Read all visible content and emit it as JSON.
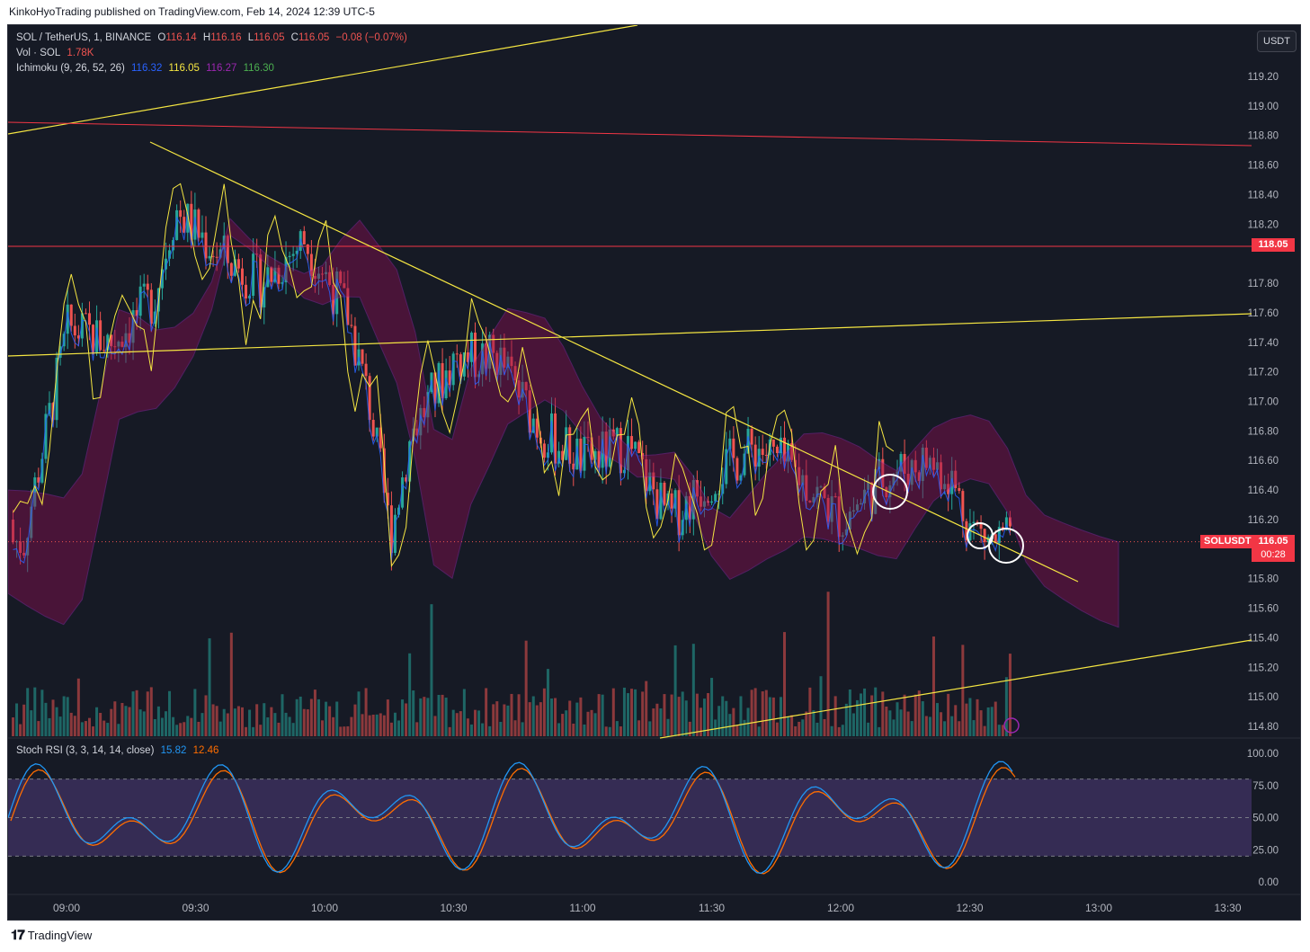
{
  "publish_info": "KinkoHyoTrading published on TradingView.com, Feb 14, 2024 12:39 UTC-5",
  "symbol_line": {
    "name": "SOL / TetherUS, 1, BINANCE",
    "o_label": "O",
    "o": "116.14",
    "h_label": "H",
    "h": "116.16",
    "l_label": "L",
    "l": "116.05",
    "c_label": "C",
    "c": "116.05",
    "change": "−0.08 (−0.07%)"
  },
  "volume_line": {
    "label": "Vol · SOL",
    "value": "1.78K"
  },
  "ichimoku_line": {
    "label": "Ichimoku (9, 26, 52, 26)",
    "v1": "116.32",
    "v2": "116.05",
    "v3": "116.27",
    "v4": "116.30"
  },
  "currency_button": "USDT",
  "price_axis": [
    "119.20",
    "119.00",
    "118.80",
    "118.60",
    "118.40",
    "118.20",
    "117.80",
    "117.60",
    "117.40",
    "117.20",
    "117.00",
    "116.80",
    "116.60",
    "116.40",
    "116.20",
    "115.80",
    "115.60",
    "115.40",
    "115.20",
    "115.00",
    "114.80"
  ],
  "tags": {
    "level_price": "118.05",
    "symbol_tag": "SOLUSDT",
    "last_price": "116.05",
    "countdown": "00:28"
  },
  "stoch_line": {
    "label": "Stoch RSI (3, 3, 14, 14, close)",
    "k": "15.82",
    "d": "12.46"
  },
  "stoch_axis": [
    "100.00",
    "75.00",
    "50.00",
    "25.00",
    "0.00"
  ],
  "time_axis": [
    "09:00",
    "09:30",
    "10:00",
    "10:30",
    "11:00",
    "11:30",
    "12:00",
    "12:30",
    "13:00",
    "13:30"
  ],
  "footer": {
    "brand": "TradingView"
  },
  "colors": {
    "background": "#161a25",
    "up": "#26a69a",
    "down": "#ef5350",
    "trendline": "#f5e642",
    "level_line": "#f23645",
    "cloud_bull": "#4caf50",
    "cloud_bear": "#880e4f",
    "tenkan": "#2962ff",
    "lagging": "#f5e642",
    "stoch_k": "#2196f3",
    "stoch_d": "#ff6d00"
  },
  "chart_data": {
    "type": "candlestick",
    "symbol": "SOL / TetherUS",
    "interval": "1",
    "exchange": "BINANCE",
    "last": {
      "open": 116.14,
      "high": 116.16,
      "low": 116.05,
      "close": 116.05,
      "change": -0.08,
      "change_pct": -0.07
    },
    "ylim": [
      114.7,
      119.35
    ],
    "xlim": [
      "08:50",
      "13:36"
    ],
    "approx_closes": [
      [
        "08:50",
        116.1
      ],
      [
        "09:00",
        117.5
      ],
      [
        "09:10",
        117.4
      ],
      [
        "09:20",
        117.7
      ],
      [
        "09:25",
        118.3
      ],
      [
        "09:35",
        118.0
      ],
      [
        "09:45",
        117.8
      ],
      [
        "09:55",
        118.1
      ],
      [
        "10:05",
        117.6
      ],
      [
        "10:10",
        117.0
      ],
      [
        "10:15",
        116.1
      ],
      [
        "10:20",
        116.8
      ],
      [
        "10:30",
        117.3
      ],
      [
        "10:40",
        117.3
      ],
      [
        "10:50",
        116.8
      ],
      [
        "11:00",
        116.6
      ],
      [
        "11:10",
        116.7
      ],
      [
        "11:20",
        116.2
      ],
      [
        "11:30",
        116.5
      ],
      [
        "11:40",
        116.7
      ],
      [
        "11:50",
        116.5
      ],
      [
        "12:00",
        116.2
      ],
      [
        "12:10",
        116.5
      ],
      [
        "12:20",
        116.6
      ],
      [
        "12:25",
        116.5
      ],
      [
        "12:30",
        116.15
      ],
      [
        "12:35",
        116.05
      ]
    ],
    "horizontal_levels": [
      118.05
    ],
    "last_price_line": 116.05,
    "volume_last": "1.78K",
    "stoch_rsi": {
      "k_last": 15.82,
      "d_last": 12.46,
      "bands": [
        80,
        50,
        20
      ]
    }
  }
}
